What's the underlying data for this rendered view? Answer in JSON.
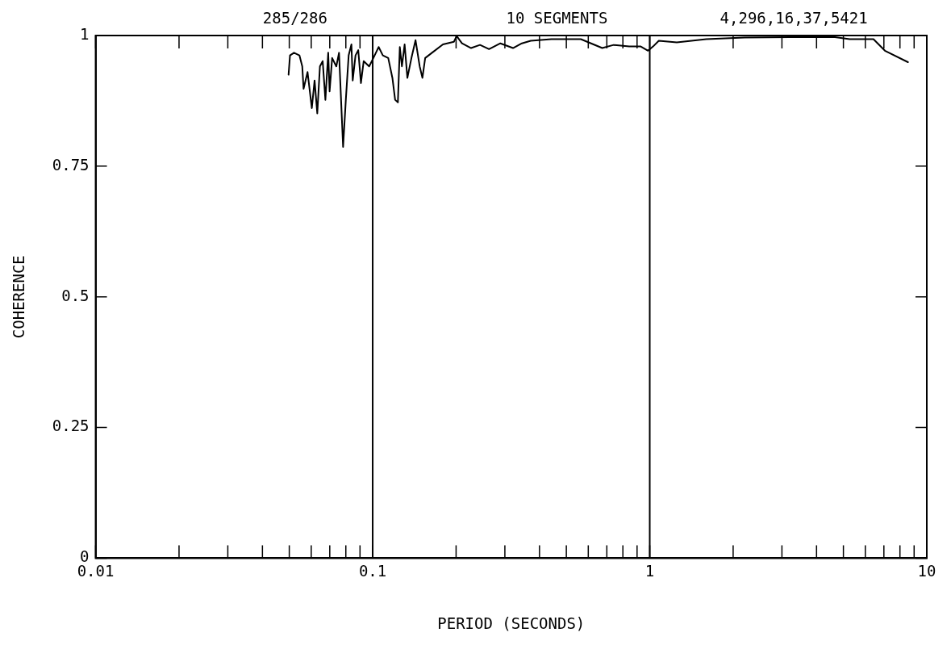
{
  "chart_data": {
    "type": "line",
    "xlabel": "PERIOD (SECONDS)",
    "ylabel": "COHERENCE",
    "annotations": [
      "285/286",
      "10 SEGMENTS",
      "4,296,16,37,5421"
    ],
    "log": "x",
    "grid": false,
    "legend": false,
    "marker": "none",
    "line_style": "solid",
    "xlim": [
      0.01,
      10
    ],
    "ylim": [
      0,
      1
    ],
    "xticks": [
      0.01,
      {
        "value": 0.02,
        "label": null
      },
      {
        "value": 0.03,
        "label": null
      },
      {
        "value": 0.04,
        "label": null
      },
      {
        "value": 0.05,
        "label": null
      },
      {
        "value": 0.06,
        "label": null
      },
      {
        "value": 0.07,
        "label": null
      },
      {
        "value": 0.08,
        "label": null
      },
      {
        "value": 0.09,
        "label": null
      },
      0.1,
      {
        "value": 0.2,
        "label": null
      },
      {
        "value": 0.3,
        "label": null
      },
      {
        "value": 0.4,
        "label": null
      },
      {
        "value": 0.5,
        "label": null
      },
      {
        "value": 0.6,
        "label": null
      },
      {
        "value": 0.7,
        "label": null
      },
      {
        "value": 0.8,
        "label": null
      },
      {
        "value": 0.9,
        "label": null
      },
      1,
      {
        "value": 2,
        "label": null
      },
      {
        "value": 3,
        "label": null
      },
      {
        "value": 4,
        "label": null
      },
      {
        "value": 5,
        "label": null
      },
      {
        "value": 6,
        "label": null
      },
      {
        "value": 7,
        "label": null
      },
      {
        "value": 8,
        "label": null
      },
      {
        "value": 9,
        "label": null
      },
      10
    ],
    "yticks": [
      0,
      0.25,
      0.5,
      0.75,
      1
    ],
    "ref_lines": [
      {
        "axis": "x",
        "value": 0.1,
        "color": "#000000"
      },
      {
        "axis": "x",
        "value": 1,
        "color": "#000000"
      }
    ],
    "series": [
      {
        "color": "#000000",
        "x": [
          0.0497,
          0.0503,
          0.052,
          0.0544,
          0.0557,
          0.0563,
          0.0582,
          0.0603,
          0.0617,
          0.0631,
          0.0645,
          0.066,
          0.0675,
          0.0691,
          0.0699,
          0.0714,
          0.0739,
          0.0756,
          0.0782,
          0.08,
          0.0819,
          0.0838,
          0.0847,
          0.0867,
          0.0887,
          0.0907,
          0.0928,
          0.0971,
          0.0993,
          0.1027,
          0.1051,
          0.1088,
          0.1138,
          0.1178,
          0.1205,
          0.1233,
          0.1253,
          0.1275,
          0.1304,
          0.1334,
          0.138,
          0.1428,
          0.1478,
          0.1512,
          0.1547,
          0.1637,
          0.1793,
          0.1964,
          0.2009,
          0.21,
          0.2265,
          0.244,
          0.263,
          0.289,
          0.321,
          0.3455,
          0.372,
          0.4416,
          0.564,
          0.674,
          0.741,
          0.843,
          0.928,
          0.986,
          1.028,
          1.078,
          1.252,
          1.6,
          2.2,
          3.21,
          4.1,
          4.66,
          5.27,
          6.42,
          7.06,
          8.55
        ],
        "values": [
          0.925,
          0.962,
          0.967,
          0.962,
          0.941,
          0.898,
          0.93,
          0.861,
          0.914,
          0.851,
          0.941,
          0.951,
          0.877,
          0.967,
          0.893,
          0.957,
          0.941,
          0.967,
          0.787,
          0.877,
          0.962,
          0.983,
          0.914,
          0.962,
          0.972,
          0.909,
          0.951,
          0.941,
          0.951,
          0.967,
          0.978,
          0.962,
          0.957,
          0.919,
          0.877,
          0.872,
          0.978,
          0.941,
          0.983,
          0.919,
          0.957,
          0.991,
          0.941,
          0.919,
          0.957,
          0.967,
          0.983,
          0.988,
          0.999,
          0.985,
          0.976,
          0.982,
          0.974,
          0.985,
          0.976,
          0.985,
          0.99,
          0.993,
          0.993,
          0.976,
          0.982,
          0.979,
          0.979,
          0.971,
          0.979,
          0.99,
          0.987,
          0.993,
          0.996,
          0.997,
          0.997,
          0.997,
          0.993,
          0.993,
          0.971,
          0.949
        ]
      }
    ]
  }
}
